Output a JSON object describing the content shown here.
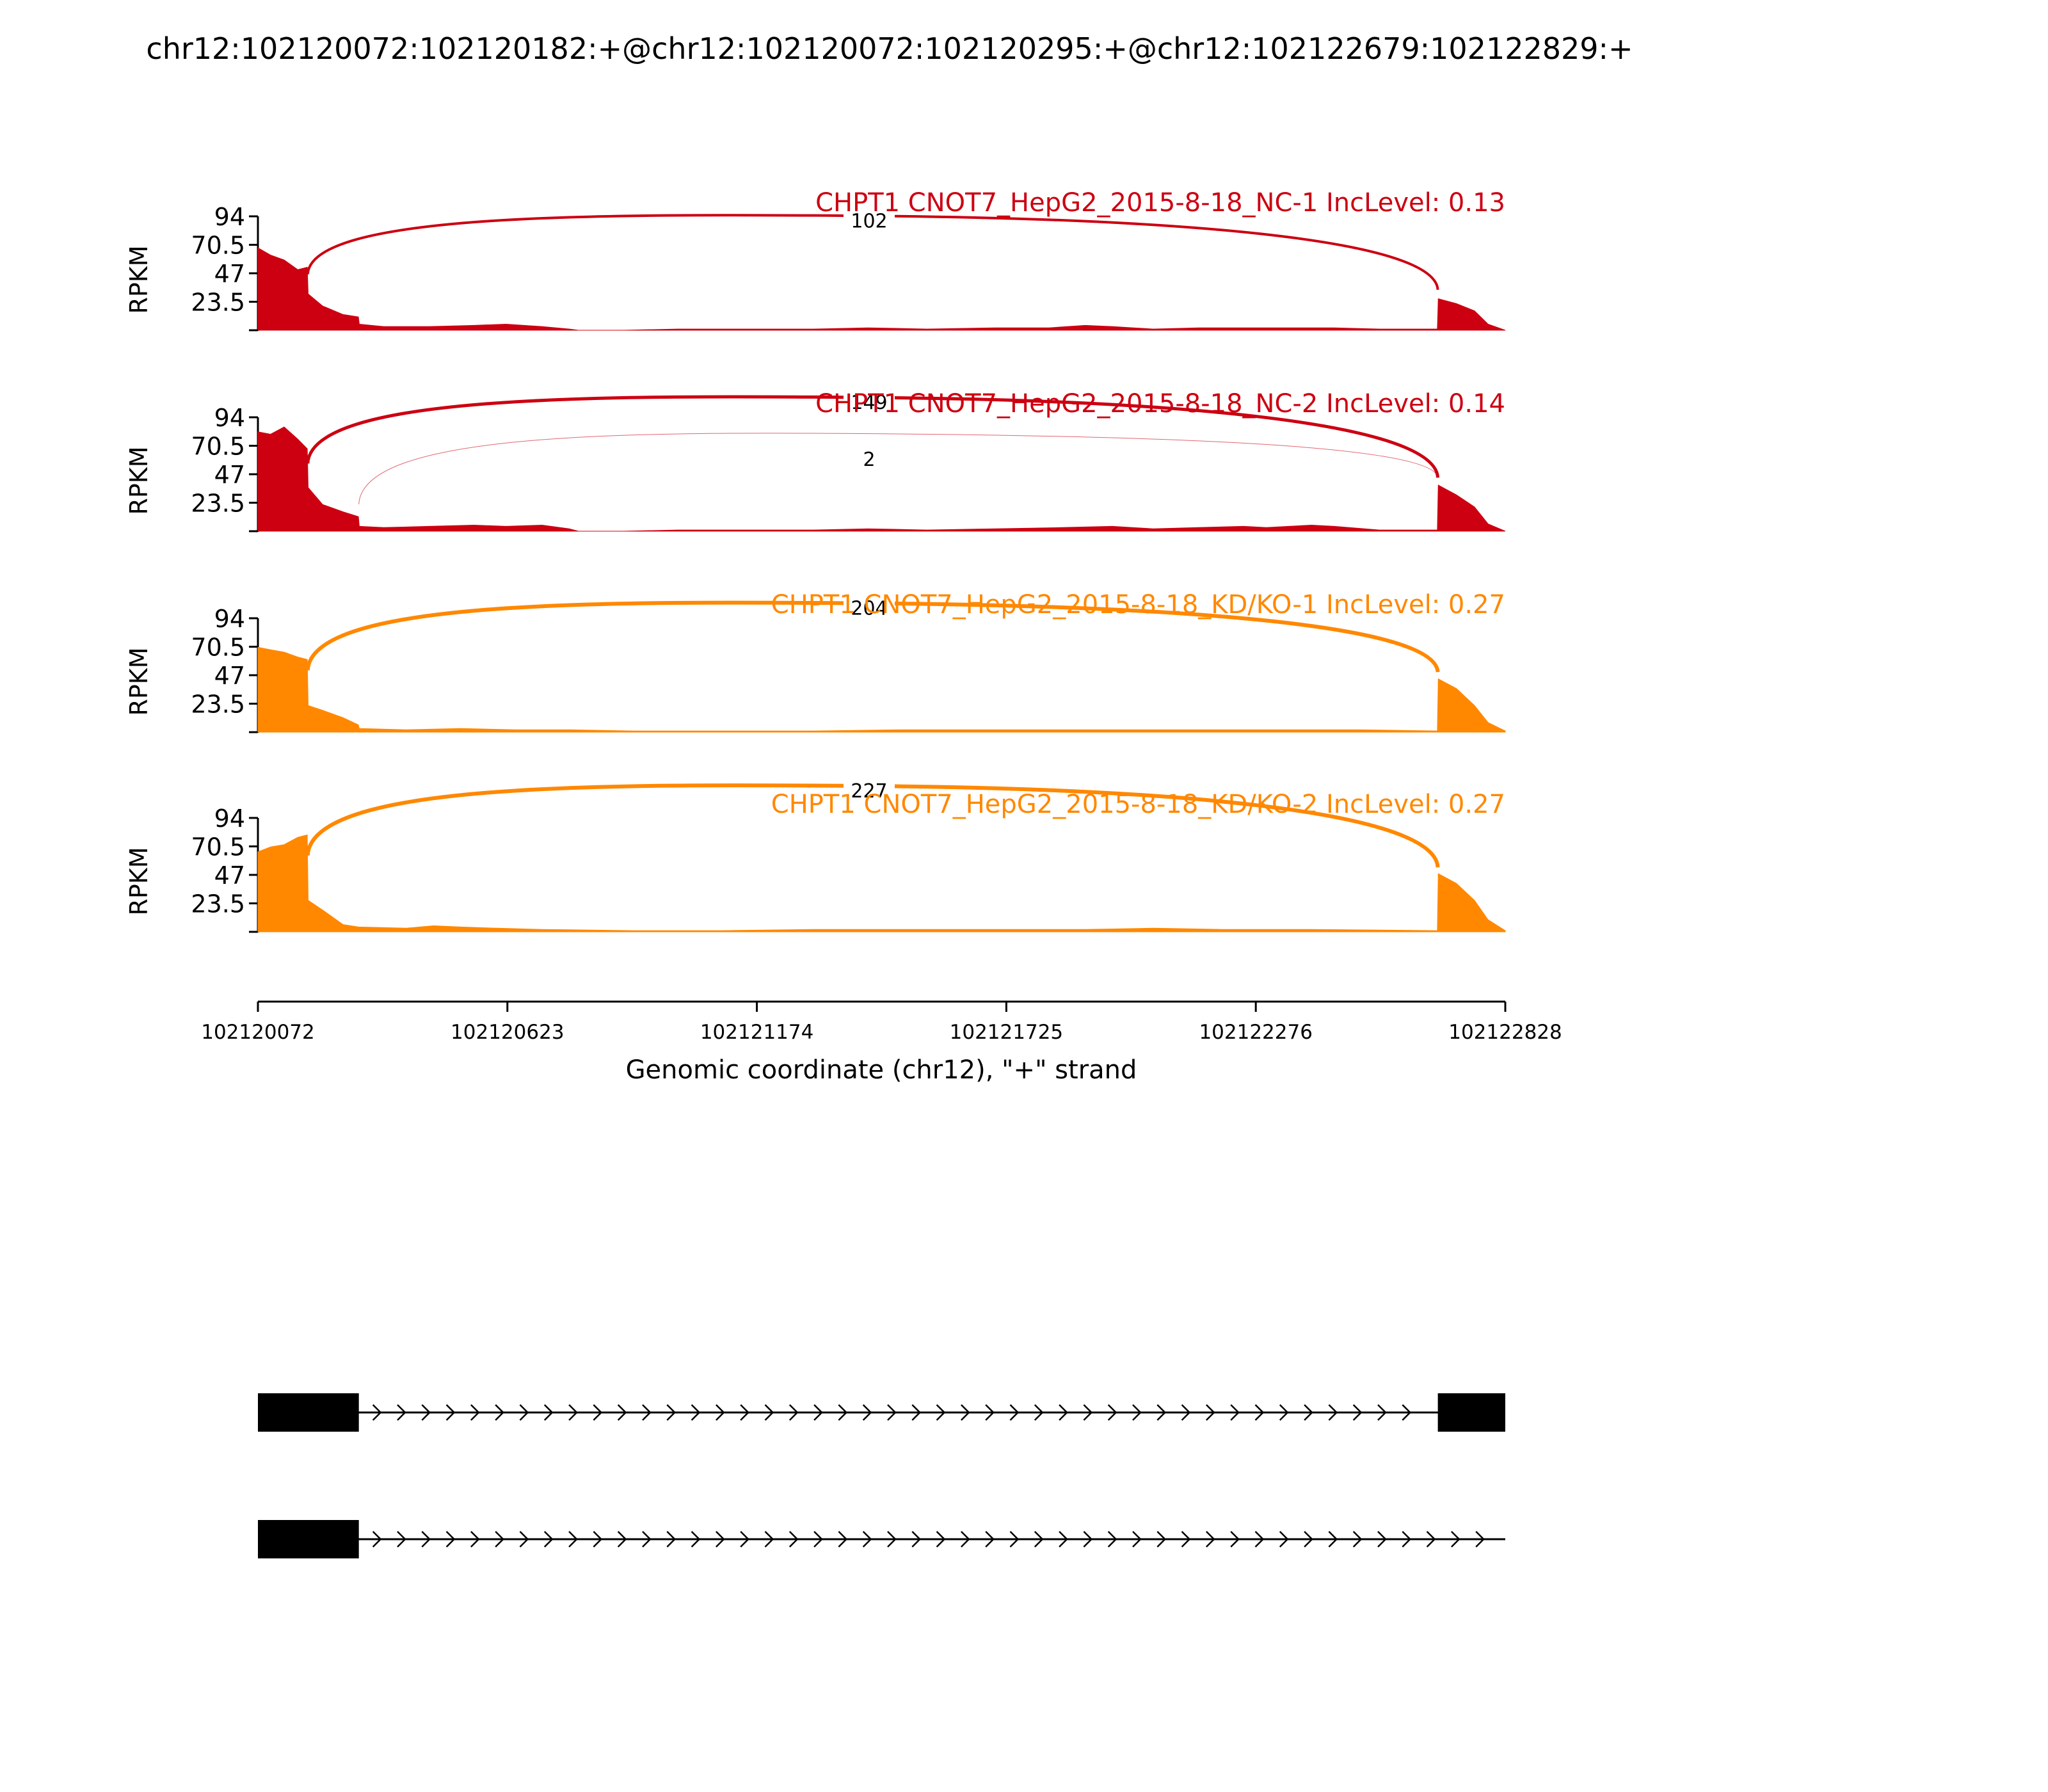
{
  "title": "chr12:102120072:102120182:+@chr12:102120072:102120295:+@chr12:102122679:102122829:+",
  "colors": {
    "nc": "#cc0011",
    "kd": "#ff8800",
    "axis": "#000000",
    "gene": "#000000"
  },
  "chart_data": {
    "type": "area",
    "x_range": [
      102120072,
      102122828
    ],
    "x_ticks": [
      "102120072",
      "102120623",
      "102121174",
      "102121725",
      "102122276",
      "102122828"
    ],
    "xlabel": "Genomic coordinate (chr12), \"+\" strand",
    "ylabel": "RPKM",
    "y_ticks": [
      "94",
      "70.5",
      "47",
      "23.5"
    ],
    "ylim": [
      0,
      94
    ],
    "tracks": [
      {
        "label": "CHPT1 CNOT7_HepG2_2015-8-18_NC-1 IncLevel: 0.13",
        "color": "nc",
        "coverage": [
          [
            102120072,
            68
          ],
          [
            102120100,
            62
          ],
          [
            102120130,
            58
          ],
          [
            102120160,
            50
          ],
          [
            102120181,
            52
          ],
          [
            102120183,
            30
          ],
          [
            102120215,
            20
          ],
          [
            102120260,
            13
          ],
          [
            102120294,
            11
          ],
          [
            102120296,
            5
          ],
          [
            102120350,
            3
          ],
          [
            102120450,
            3
          ],
          [
            102120550,
            4
          ],
          [
            102120620,
            5
          ],
          [
            102120660,
            4
          ],
          [
            102120700,
            3
          ],
          [
            102120760,
            1
          ],
          [
            102120780,
            0
          ],
          [
            102120880,
            0
          ],
          [
            102121000,
            1
          ],
          [
            102121100,
            1
          ],
          [
            102121200,
            1
          ],
          [
            102121300,
            1
          ],
          [
            102121420,
            2
          ],
          [
            102121550,
            1
          ],
          [
            102121700,
            2
          ],
          [
            102121820,
            2
          ],
          [
            102121900,
            4
          ],
          [
            102121960,
            3
          ],
          [
            102122050,
            1
          ],
          [
            102122150,
            2
          ],
          [
            102122300,
            2
          ],
          [
            102122450,
            2
          ],
          [
            102122550,
            1
          ],
          [
            102122678,
            1
          ],
          [
            102122680,
            26
          ],
          [
            102122720,
            22
          ],
          [
            102122760,
            16
          ],
          [
            102122790,
            5
          ],
          [
            102122828,
            0
          ]
        ],
        "junctions": [
          {
            "from": 102120182,
            "to": 102122679,
            "count": "102",
            "peak": 70,
            "weight": 4
          }
        ]
      },
      {
        "label": "CHPT1 CNOT7_HepG2_2015-8-18_NC-2 IncLevel: 0.14",
        "color": "nc",
        "coverage": [
          [
            102120072,
            82
          ],
          [
            102120100,
            80
          ],
          [
            102120130,
            86
          ],
          [
            102120160,
            76
          ],
          [
            102120181,
            68
          ],
          [
            102120183,
            36
          ],
          [
            102120215,
            22
          ],
          [
            102120260,
            16
          ],
          [
            102120294,
            12
          ],
          [
            102120296,
            4
          ],
          [
            102120350,
            3
          ],
          [
            102120450,
            4
          ],
          [
            102120550,
            5
          ],
          [
            102120620,
            4
          ],
          [
            102120700,
            5
          ],
          [
            102120760,
            2
          ],
          [
            102120780,
            0
          ],
          [
            102120880,
            0
          ],
          [
            102121000,
            1
          ],
          [
            102121100,
            1
          ],
          [
            102121200,
            1
          ],
          [
            102121300,
            1
          ],
          [
            102121420,
            2
          ],
          [
            102121550,
            1
          ],
          [
            102121700,
            2
          ],
          [
            102121850,
            3
          ],
          [
            102121960,
            4
          ],
          [
            102122050,
            2
          ],
          [
            102122150,
            3
          ],
          [
            102122250,
            4
          ],
          [
            102122300,
            3
          ],
          [
            102122400,
            5
          ],
          [
            102122450,
            4
          ],
          [
            102122550,
            1
          ],
          [
            102122678,
            1
          ],
          [
            102122680,
            38
          ],
          [
            102122720,
            30
          ],
          [
            102122760,
            20
          ],
          [
            102122790,
            6
          ],
          [
            102122828,
            0
          ]
        ],
        "junctions": [
          {
            "from": 102120182,
            "to": 102122679,
            "count": "149",
            "peak": 86,
            "weight": 5
          },
          {
            "from": 102120295,
            "to": 102122679,
            "count": "2",
            "peak": 56,
            "weight": 1
          }
        ]
      },
      {
        "label": "CHPT1 CNOT7_HepG2_2015-8-18_KD/KO-1 IncLevel: 0.27",
        "color": "kd",
        "coverage": [
          [
            102120072,
            70
          ],
          [
            102120100,
            68
          ],
          [
            102120130,
            66
          ],
          [
            102120160,
            62
          ],
          [
            102120181,
            60
          ],
          [
            102120183,
            22
          ],
          [
            102120215,
            18
          ],
          [
            102120260,
            12
          ],
          [
            102120294,
            6
          ],
          [
            102120296,
            3
          ],
          [
            102120400,
            2
          ],
          [
            102120520,
            3
          ],
          [
            102120640,
            2
          ],
          [
            102120760,
            2
          ],
          [
            102120900,
            1
          ],
          [
            102121100,
            1
          ],
          [
            102121300,
            1
          ],
          [
            102121500,
            2
          ],
          [
            102121700,
            2
          ],
          [
            102121900,
            2
          ],
          [
            102122100,
            2
          ],
          [
            102122300,
            2
          ],
          [
            102122500,
            2
          ],
          [
            102122678,
            1
          ],
          [
            102122680,
            44
          ],
          [
            102122720,
            36
          ],
          [
            102122760,
            22
          ],
          [
            102122790,
            8
          ],
          [
            102122828,
            1
          ]
        ],
        "junctions": [
          {
            "from": 102120182,
            "to": 102122679,
            "count": "204",
            "peak": 82,
            "weight": 6
          }
        ]
      },
      {
        "label": "CHPT1 CNOT7_HepG2_2015-8-18_KD/KO-2 IncLevel: 0.27",
        "color": "kd",
        "coverage": [
          [
            102120072,
            66
          ],
          [
            102120100,
            70
          ],
          [
            102120130,
            72
          ],
          [
            102120160,
            78
          ],
          [
            102120181,
            80
          ],
          [
            102120183,
            26
          ],
          [
            102120215,
            18
          ],
          [
            102120260,
            6
          ],
          [
            102120294,
            4
          ],
          [
            102120400,
            3
          ],
          [
            102120460,
            5
          ],
          [
            102120520,
            4
          ],
          [
            102120600,
            3
          ],
          [
            102120700,
            2
          ],
          [
            102120900,
            1
          ],
          [
            102121100,
            1
          ],
          [
            102121300,
            2
          ],
          [
            102121500,
            2
          ],
          [
            102121700,
            2
          ],
          [
            102121900,
            2
          ],
          [
            102122050,
            3
          ],
          [
            102122200,
            2
          ],
          [
            102122400,
            2
          ],
          [
            102122678,
            1
          ],
          [
            102122680,
            48
          ],
          [
            102122720,
            40
          ],
          [
            102122760,
            26
          ],
          [
            102122790,
            10
          ],
          [
            102122828,
            1
          ]
        ],
        "junctions": [
          {
            "from": 102120182,
            "to": 102122679,
            "count": "227",
            "peak": 96,
            "weight": 6
          }
        ]
      }
    ],
    "isoforms": [
      {
        "exons": [
          [
            102120072,
            102120295
          ],
          [
            102122679,
            102122828
          ]
        ]
      },
      {
        "exons": [
          [
            102120072,
            102120295
          ]
        ]
      }
    ]
  }
}
